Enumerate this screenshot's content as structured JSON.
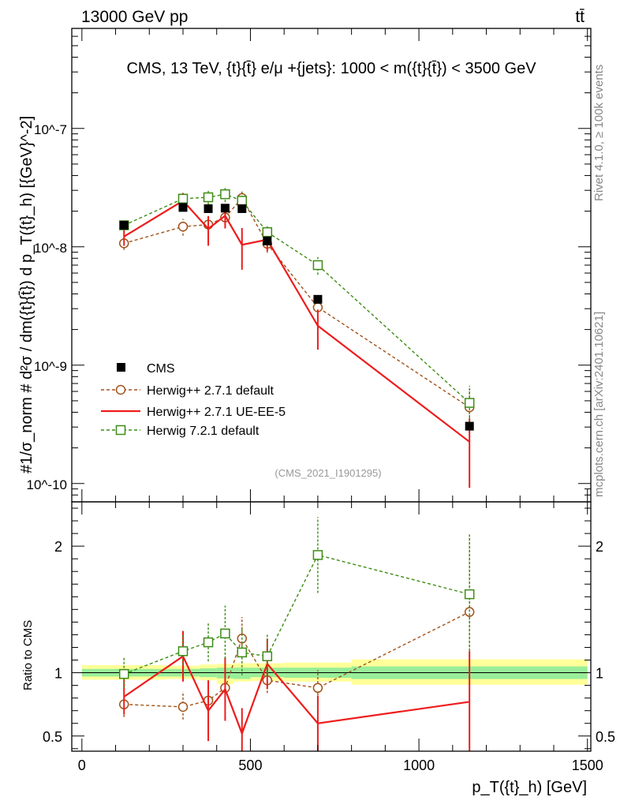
{
  "header": {
    "energy_label": "13000 GeV pp",
    "process_label": "tt̄",
    "plot_title": "CMS, 13 TeV, {t}{t̄} e/μ +{jets}: 1000 < m({t}{t̄}) < 3500 GeV",
    "watermark": "(CMS_2021_I1901295)",
    "side_label_top": "Rivet 4.1.0, ≥ 100k events",
    "side_label_bottom": "mcplots.cern.ch [arXiv:2401.10621]"
  },
  "chart_data": [
    {
      "type": "line",
      "panel": "main",
      "title": "CMS, 13 TeV, {t}{t̄} e/μ +{jets}: 1000 < m({t}{t̄}) < 3500 GeV",
      "xlabel": "p_T({t}_h) [GeV]",
      "ylabel": "#1/σ_norm # d²σ / dm({t}{t̄}) d p_T({t}_h) [{GeV}^-2]",
      "yscale": "log",
      "xlim": [
        -30,
        1510
      ],
      "ylim": [
        7e-11,
        7e-07
      ],
      "y_tick_labels": [
        "10^-10",
        "10^-9",
        "10^-8",
        "10^-7"
      ],
      "y_tick_values": [
        1e-10,
        1e-09,
        1e-08,
        1e-07
      ],
      "legend_position": "lower-left",
      "series": [
        {
          "name": "CMS",
          "style": "markers",
          "color": "#000000",
          "x": [
            125,
            300,
            375,
            425,
            475,
            550,
            700,
            1150
          ],
          "y": [
            1.52e-08,
            2.15e-08,
            2.1e-08,
            2.12e-08,
            2.1e-08,
            1.12e-08,
            3.6e-09,
            3.05e-10
          ]
        },
        {
          "name": "Herwig++ 2.7.1 default",
          "style": "dashed-circles",
          "color": "#a0521a",
          "x": [
            125,
            300,
            375,
            425,
            475,
            550,
            700,
            1150
          ],
          "y": [
            1.07e-08,
            1.48e-08,
            1.54e-08,
            1.77e-08,
            2.58e-08,
            1.06e-08,
            3.08e-09,
            4.4e-10
          ],
          "err_lo": [
            1.3e-09,
            2.4e-09,
            2.6e-09,
            2.8e-09,
            3.5e-09,
            1.7e-09,
            5e-10,
            1.3e-10
          ],
          "err_hi": [
            1.3e-09,
            2.4e-09,
            2.6e-09,
            2.8e-09,
            3.5e-09,
            1.7e-09,
            5e-10,
            1.8e-10
          ]
        },
        {
          "name": "Herwig++ 2.7.1 UE-EE-5",
          "style": "solid",
          "color": "#ee1c1c",
          "x": [
            125,
            300,
            375,
            425,
            475,
            550,
            700,
            1150
          ],
          "y": [
            1.22e-08,
            2.45e-08,
            1.42e-08,
            1.83e-08,
            1.04e-08,
            1.15e-08,
            2.15e-09,
            2.25e-10
          ],
          "err_lo": [
            2e-09,
            4e-09,
            4e-09,
            4e-09,
            4e-09,
            2.3e-09,
            8e-10,
            1.33e-10
          ],
          "err_hi": [
            2e-09,
            4e-09,
            4e-09,
            4e-09,
            4e-09,
            2.3e-09,
            8e-10,
            1.3e-10
          ]
        },
        {
          "name": "Herwig 7.2.1 default",
          "style": "dashed-squares",
          "color": "#3c8c14",
          "x": [
            125,
            300,
            375,
            425,
            475,
            550,
            700,
            1150
          ],
          "y": [
            1.52e-08,
            2.55e-08,
            2.62e-08,
            2.78e-08,
            2.45e-08,
            1.33e-08,
            7e-09,
            4.8e-10
          ],
          "err_lo": [
            1.5e-09,
            3e-09,
            3.5e-09,
            4e-09,
            4e-09,
            2e-09,
            1.2e-09,
            1.5e-10
          ],
          "err_hi": [
            1.5e-09,
            3e-09,
            3.5e-09,
            4e-09,
            4e-09,
            2e-09,
            1.2e-09,
            1.9e-10
          ]
        }
      ]
    },
    {
      "type": "line",
      "panel": "ratio",
      "xlabel": "p_T({t}_h) [GeV]",
      "ylabel": "Ratio to CMS",
      "ylim": [
        0.38,
        2.35
      ],
      "y_tick_labels": [
        "0.5",
        "1",
        "2"
      ],
      "y_tick_values": [
        0.5,
        1.0,
        2.0
      ],
      "x_tick_labels": [
        "0",
        "500",
        "1000",
        "1500"
      ],
      "x_tick_values": [
        0,
        500,
        1000,
        1500
      ],
      "uncertainty_bins": [
        {
          "x_lo": 0,
          "x_hi": 250,
          "stat_lo": 0.97,
          "stat_hi": 1.03,
          "total_lo": 0.945,
          "total_hi": 1.06
        },
        {
          "x_lo": 250,
          "x_hi": 350,
          "stat_lo": 0.97,
          "stat_hi": 1.03,
          "total_lo": 0.95,
          "total_hi": 1.055
        },
        {
          "x_lo": 350,
          "x_hi": 400,
          "stat_lo": 0.965,
          "stat_hi": 1.035,
          "total_lo": 0.94,
          "total_hi": 1.065
        },
        {
          "x_lo": 400,
          "x_hi": 450,
          "stat_lo": 0.955,
          "stat_hi": 1.04,
          "total_lo": 0.91,
          "total_hi": 1.07
        },
        {
          "x_lo": 450,
          "x_hi": 500,
          "stat_lo": 0.95,
          "stat_hi": 1.04,
          "total_lo": 0.93,
          "total_hi": 1.075
        },
        {
          "x_lo": 500,
          "x_hi": 600,
          "stat_lo": 0.965,
          "stat_hi": 1.04,
          "total_lo": 0.935,
          "total_hi": 1.075
        },
        {
          "x_lo": 600,
          "x_hi": 800,
          "stat_lo": 0.96,
          "stat_hi": 1.04,
          "total_lo": 0.93,
          "total_hi": 1.08
        },
        {
          "x_lo": 800,
          "x_hi": 1500,
          "stat_lo": 0.95,
          "stat_hi": 1.05,
          "total_lo": 0.905,
          "total_hi": 1.105
        }
      ],
      "series": [
        {
          "name": "Herwig++ 2.7.1 default",
          "color": "#a0521a",
          "x": [
            125,
            300,
            375,
            425,
            475,
            550,
            700,
            1150
          ],
          "y": [
            0.75,
            0.73,
            0.78,
            0.88,
            1.27,
            0.94,
            0.88,
            1.48
          ],
          "err_lo": [
            0.1,
            0.1,
            0.1,
            0.12,
            0.15,
            0.1,
            0.12,
            0.4
          ],
          "err_hi": [
            0.1,
            0.12,
            0.12,
            0.15,
            0.17,
            0.15,
            0.14,
            0.6
          ]
        },
        {
          "name": "Herwig++ 2.7.1 UE-EE-5",
          "color": "#ee1c1c",
          "x": [
            125,
            300,
            375,
            425,
            475,
            550,
            700,
            1150
          ],
          "y": [
            0.81,
            1.13,
            0.7,
            0.87,
            0.52,
            1.07,
            0.6,
            0.77
          ],
          "err_lo": [
            0.14,
            0.2,
            0.24,
            0.25,
            0.2,
            0.2,
            0.22,
            0.4
          ],
          "err_hi": [
            0.14,
            0.2,
            0.24,
            0.25,
            0.2,
            0.2,
            0.22,
            0.4
          ]
        },
        {
          "name": "Herwig 7.2.1 default",
          "color": "#3c8c14",
          "x": [
            125,
            300,
            375,
            425,
            475,
            550,
            700,
            1150
          ],
          "y": [
            0.99,
            1.17,
            1.24,
            1.31,
            1.16,
            1.13,
            1.93,
            1.62
          ],
          "err_lo": [
            0.11,
            0.11,
            0.15,
            0.2,
            0.18,
            0.16,
            0.3,
            0.45
          ],
          "err_hi": [
            0.13,
            0.13,
            0.16,
            0.22,
            0.2,
            0.17,
            0.3,
            0.48
          ]
        }
      ]
    }
  ]
}
